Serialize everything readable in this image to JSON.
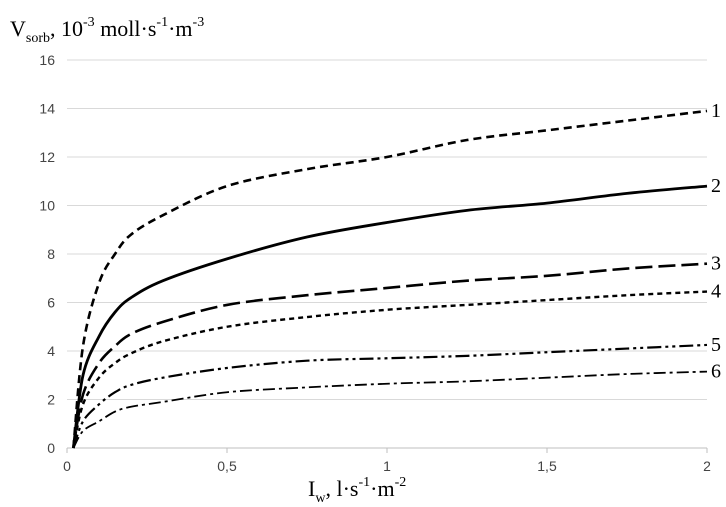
{
  "chart_data": {
    "type": "line",
    "ylabel": {
      "base": "V",
      "base_sub": "sorb",
      "mid": ", 10",
      "exp1": "-3",
      "mid2": " moll·s",
      "exp2": "-1",
      "mid3": "·m",
      "exp3": "-3"
    },
    "xlabel": {
      "base": "I",
      "base_sub": "w",
      "mid": ", l·s",
      "exp1": "-1",
      "mid2": "·m",
      "exp2": "-2"
    },
    "xlim": [
      0,
      2
    ],
    "ylim": [
      0,
      16
    ],
    "xticks": [
      {
        "v": 0,
        "label": "0"
      },
      {
        "v": 0.5,
        "label": "0,5"
      },
      {
        "v": 1,
        "label": "1"
      },
      {
        "v": 1.5,
        "label": "1,5"
      },
      {
        "v": 2,
        "label": "2"
      }
    ],
    "yticks": [
      {
        "v": 0,
        "label": "0"
      },
      {
        "v": 2,
        "label": "2"
      },
      {
        "v": 4,
        "label": "4"
      },
      {
        "v": 6,
        "label": "6"
      },
      {
        "v": 8,
        "label": "8"
      },
      {
        "v": 10,
        "label": "10"
      },
      {
        "v": 12,
        "label": "12"
      },
      {
        "v": 14,
        "label": "14"
      },
      {
        "v": 16,
        "label": "16"
      }
    ],
    "grid": "horizontal",
    "series": [
      {
        "label": "1",
        "style": "dashed",
        "x": [
          0.02,
          0.05,
          0.1,
          0.15,
          0.2,
          0.3,
          0.5,
          0.75,
          1,
          1.25,
          1.5,
          1.75,
          2
        ],
        "y": [
          0,
          4.2,
          6.8,
          8.0,
          8.8,
          9.6,
          10.8,
          11.5,
          12.0,
          12.7,
          13.1,
          13.5,
          13.9
        ]
      },
      {
        "label": "2",
        "style": "solid",
        "x": [
          0.02,
          0.05,
          0.1,
          0.15,
          0.2,
          0.3,
          0.5,
          0.75,
          1,
          1.25,
          1.5,
          1.75,
          2
        ],
        "y": [
          0,
          3.0,
          4.6,
          5.6,
          6.2,
          6.9,
          7.8,
          8.7,
          9.3,
          9.8,
          10.1,
          10.5,
          10.8
        ]
      },
      {
        "label": "3",
        "style": "long-dash",
        "x": [
          0.02,
          0.05,
          0.1,
          0.15,
          0.2,
          0.3,
          0.5,
          0.75,
          1,
          1.25,
          1.5,
          1.75,
          2
        ],
        "y": [
          0,
          2.2,
          3.5,
          4.2,
          4.7,
          5.2,
          5.9,
          6.3,
          6.6,
          6.9,
          7.1,
          7.4,
          7.6
        ]
      },
      {
        "label": "4",
        "style": "short-dash",
        "x": [
          0.02,
          0.05,
          0.1,
          0.15,
          0.2,
          0.3,
          0.5,
          0.75,
          1,
          1.25,
          1.5,
          1.75,
          2
        ],
        "y": [
          0,
          1.8,
          2.9,
          3.5,
          3.9,
          4.4,
          5.0,
          5.4,
          5.7,
          5.9,
          6.1,
          6.3,
          6.45
        ]
      },
      {
        "label": "5",
        "style": "dash-dot-dot",
        "x": [
          0.02,
          0.05,
          0.1,
          0.15,
          0.2,
          0.3,
          0.5,
          0.75,
          1,
          1.25,
          1.5,
          1.75,
          2
        ],
        "y": [
          0,
          1.1,
          1.8,
          2.3,
          2.6,
          2.9,
          3.3,
          3.6,
          3.7,
          3.8,
          3.95,
          4.1,
          4.25
        ]
      },
      {
        "label": "6",
        "style": "dash-dot",
        "x": [
          0.02,
          0.05,
          0.1,
          0.15,
          0.2,
          0.3,
          0.5,
          0.75,
          1,
          1.25,
          1.5,
          1.75,
          2
        ],
        "y": [
          0,
          0.7,
          1.1,
          1.5,
          1.7,
          1.9,
          2.3,
          2.5,
          2.65,
          2.75,
          2.9,
          3.05,
          3.15
        ]
      }
    ]
  }
}
